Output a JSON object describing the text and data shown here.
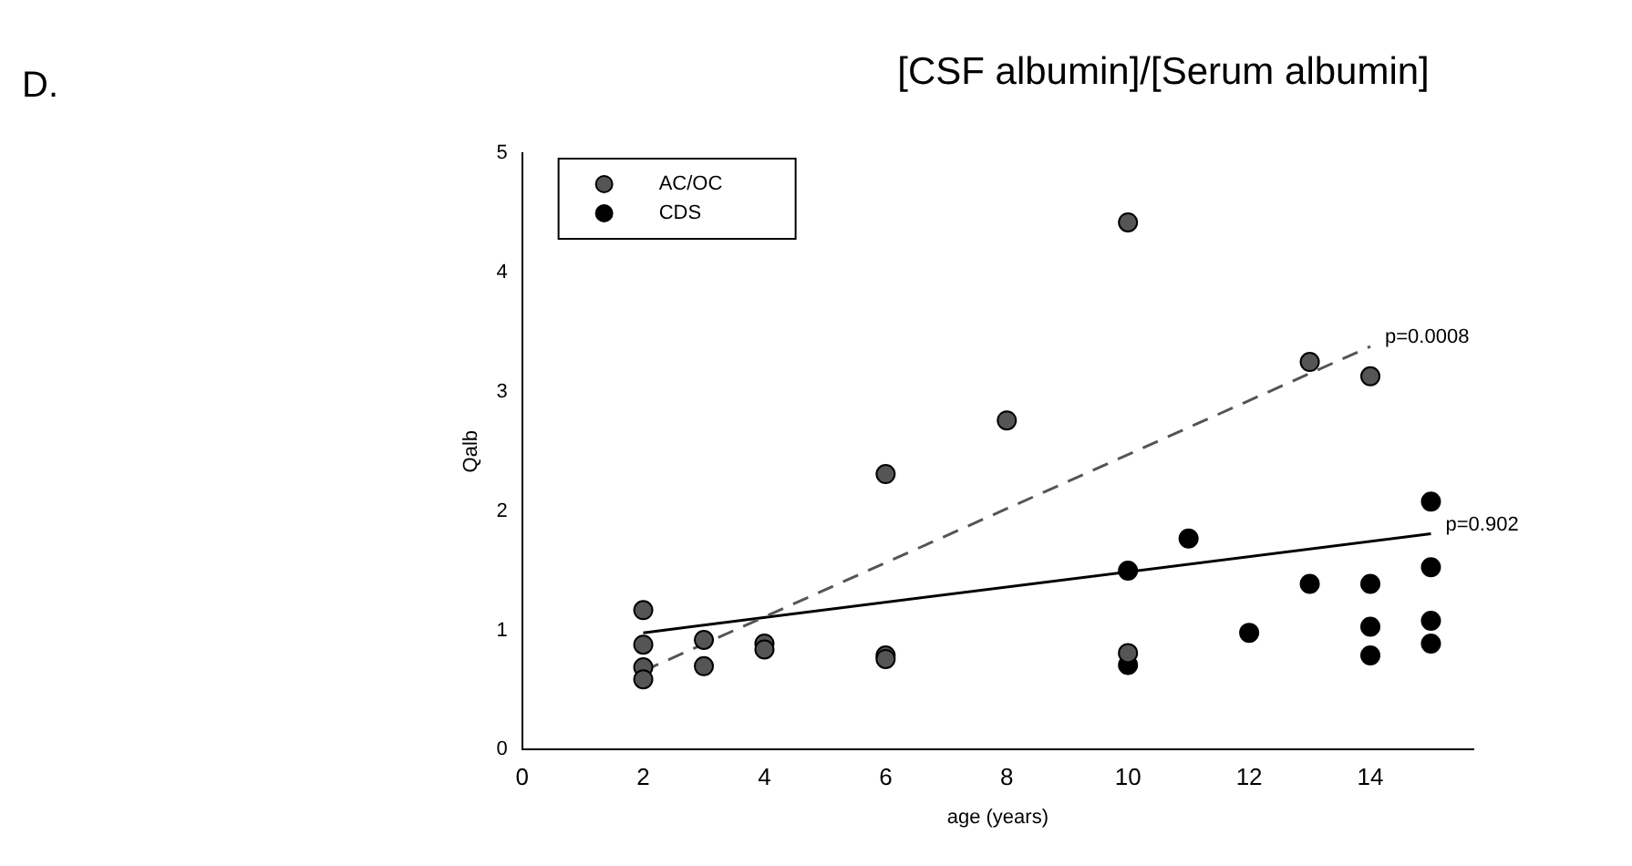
{
  "chart_data": {
    "type": "scatter",
    "title": "[CSF albumin]/[Serum albumin]",
    "xlabel": "age (years)",
    "ylabel": "Qalb",
    "xlim": [
      0,
      15.7
    ],
    "xticks": [
      0,
      2,
      4,
      6,
      8,
      10,
      12,
      14
    ],
    "ylim": [
      0,
      5
    ],
    "yticks": [
      0,
      1,
      2,
      3,
      4,
      5
    ],
    "grid": false,
    "legend": "top left",
    "marker": "circle",
    "annotations": [
      "D.",
      {
        "text": "p=0.0008",
        "x": 14,
        "y": 3.38
      },
      {
        "text": "p=0.902",
        "x": 15,
        "y": 1.81
      }
    ],
    "series": [
      {
        "name": "AC/OC",
        "color": "#555555",
        "x": [
          2,
          2,
          2,
          2,
          3,
          3,
          4,
          4,
          6,
          6,
          6,
          8,
          10,
          10,
          13,
          14
        ],
        "values": [
          1.17,
          0.88,
          0.69,
          0.59,
          0.92,
          0.7,
          0.89,
          0.84,
          2.31,
          0.79,
          0.76,
          2.76,
          4.42,
          0.81,
          3.25,
          3.13
        ]
      },
      {
        "name": "CDS",
        "color": "#000000",
        "x": [
          10,
          10,
          11,
          12,
          13,
          14,
          14,
          14,
          15,
          15,
          15,
          15
        ],
        "values": [
          1.5,
          0.71,
          1.77,
          0.98,
          1.39,
          1.39,
          1.03,
          0.79,
          2.08,
          1.53,
          1.08,
          0.89
        ]
      },
      {
        "type": "line",
        "color": "#555555",
        "line_style": "dashed",
        "marker": "none",
        "x": [
          2,
          14
        ],
        "values": [
          0.66,
          3.38
        ]
      },
      {
        "type": "line",
        "color": "#000000",
        "line_style": "solid",
        "marker": "none",
        "x": [
          2,
          15
        ],
        "values": [
          0.98,
          1.81
        ]
      }
    ]
  }
}
